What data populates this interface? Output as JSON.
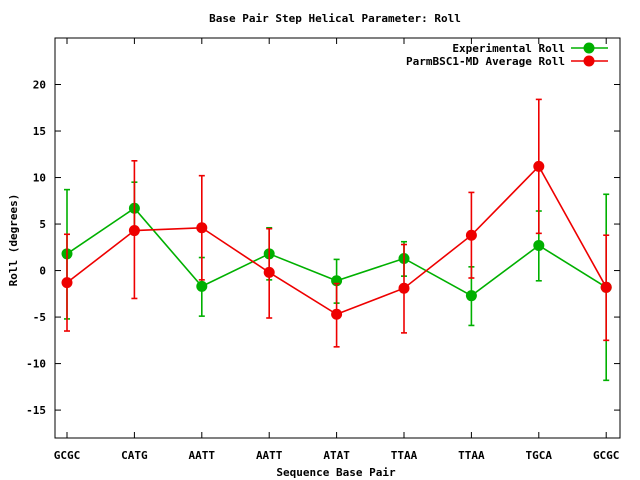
{
  "chart_data": {
    "type": "line",
    "title": "Base Pair Step Helical Parameter: Roll",
    "xlabel": "Sequence Base Pair",
    "ylabel": "Roll (degrees)",
    "categories": [
      "GCGC",
      "CATG",
      "AATT",
      "AATT",
      "ATAT",
      "TTAA",
      "TTAA",
      "TGCA",
      "GCGC"
    ],
    "ylim": [
      -18,
      25
    ],
    "yticks": [
      -15,
      -10,
      -5,
      0,
      5,
      10,
      15,
      20
    ],
    "legend_position": "top-right",
    "grid": false,
    "series": [
      {
        "name": "Experimental Roll",
        "color": "#00b000",
        "values": [
          1.8,
          6.7,
          -1.7,
          1.8,
          -1.1,
          1.3,
          -2.7,
          2.7,
          -1.8
        ],
        "err_low": [
          -5.2,
          3.9,
          -4.9,
          -1.0,
          -3.5,
          -0.6,
          -5.9,
          -1.1,
          -11.8
        ],
        "err_high": [
          8.7,
          9.5,
          1.4,
          4.6,
          1.2,
          3.1,
          0.4,
          6.4,
          8.2
        ]
      },
      {
        "name": "ParmBSC1-MD Average Roll",
        "color": "#ee0000",
        "values": [
          -1.3,
          4.3,
          4.6,
          -0.2,
          -4.7,
          -1.9,
          3.8,
          11.2,
          -1.8
        ],
        "err_low": [
          -6.5,
          -3.0,
          -1.0,
          -5.1,
          -8.2,
          -6.7,
          -0.8,
          4.0,
          -7.5
        ],
        "err_high": [
          3.9,
          11.8,
          10.2,
          4.5,
          -1.4,
          2.8,
          8.4,
          18.4,
          3.8
        ]
      }
    ]
  }
}
